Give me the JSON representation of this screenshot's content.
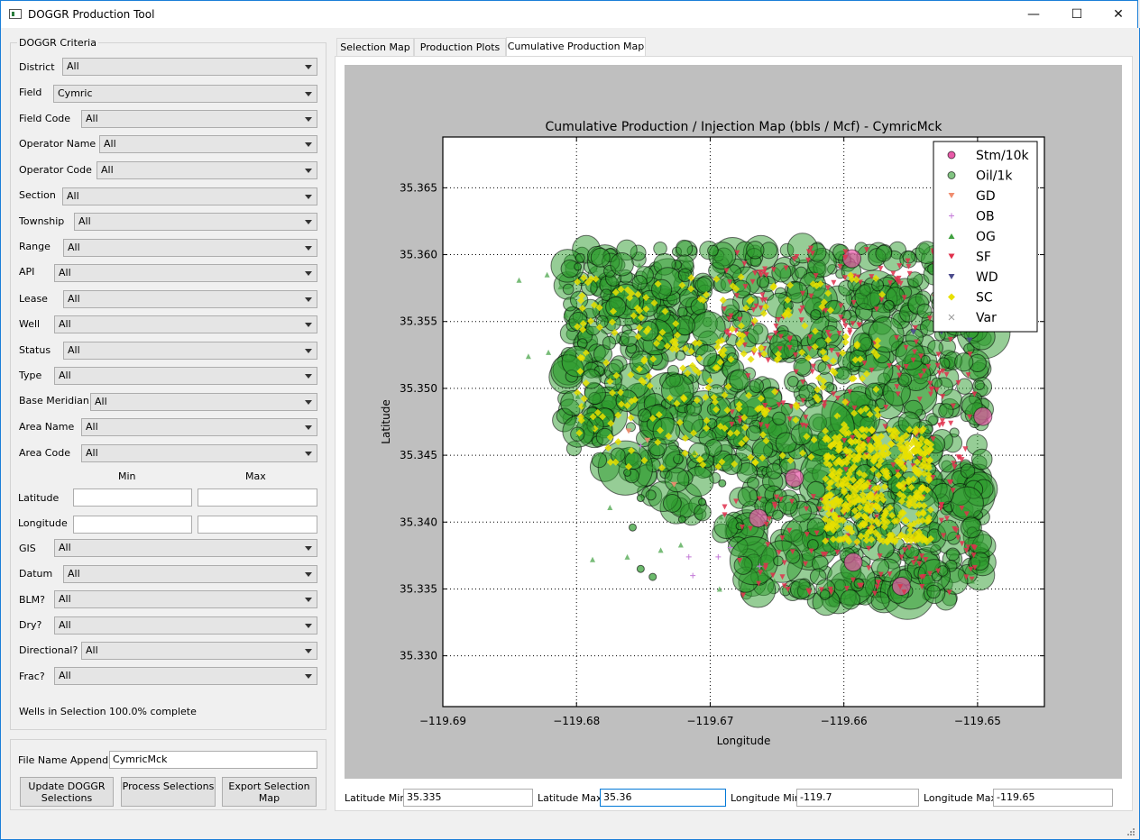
{
  "window": {
    "title": "DOGGR Production Tool",
    "minimize": "—",
    "maximize": "☐",
    "close": "✕"
  },
  "criteria": {
    "group_title": "DOGGR Criteria",
    "fields": [
      {
        "label": "District",
        "value": "All"
      },
      {
        "label": "Field",
        "value": "Cymric"
      },
      {
        "label": "Field Code",
        "value": "All"
      },
      {
        "label": "Operator Name",
        "value": "All"
      },
      {
        "label": "Operator Code",
        "value": "All"
      },
      {
        "label": "Section",
        "value": "All"
      },
      {
        "label": "Township",
        "value": "All"
      },
      {
        "label": "Range",
        "value": "All"
      },
      {
        "label": "API",
        "value": "All"
      },
      {
        "label": "Lease",
        "value": "All"
      },
      {
        "label": "Well",
        "value": "All"
      },
      {
        "label": "Status",
        "value": "All"
      },
      {
        "label": "Type",
        "value": "All"
      },
      {
        "label": "Base Meridian",
        "value": "All"
      },
      {
        "label": "Area  Name",
        "value": "All"
      },
      {
        "label": "Area  Code",
        "value": "All"
      }
    ],
    "min_label": "Min",
    "max_label": "Max",
    "latitude_label": "Latitude",
    "longitude_label": "Longitude",
    "latitude_min": "",
    "latitude_max": "",
    "longitude_min": "",
    "longitude_max": "",
    "fields2": [
      {
        "label": "GIS",
        "value": "All"
      },
      {
        "label": "Datum",
        "value": "All"
      },
      {
        "label": "BLM?",
        "value": "All"
      },
      {
        "label": "Dry?",
        "value": "All"
      },
      {
        "label": "Directional?",
        "value": "All"
      },
      {
        "label": "Frac?",
        "value": "All"
      }
    ],
    "wells_status": "Wells in Selection  100.0% complete"
  },
  "file": {
    "appendix_label": "File Name Appendix",
    "appendix_value": "CymricMck",
    "update_button": "Update DOGGR Selections",
    "process_button": "Process Selections",
    "export_button": "Export Selection Map"
  },
  "tabs": [
    "Selection Map",
    "Production Plots",
    "Cumulative Production Map"
  ],
  "bounds": {
    "lat_min_label": "Latitude Min",
    "lat_min": "35.335",
    "lat_max_label": "Latitude Max",
    "lat_max": "35.36",
    "lon_min_label": "Longitude Min",
    "lon_min": "-119.7",
    "lon_max_label": "Longitude Max",
    "lon_max": "-119.65"
  },
  "chart_data": {
    "type": "scatter",
    "title": "Cumulative Production / Injection Map (bbls / Mcf) - CymricMck",
    "xlabel": "Longitude",
    "ylabel": "Latitude",
    "xlim": [
      -119.69,
      -119.645
    ],
    "ylim": [
      35.3262,
      35.3688
    ],
    "x_ticks": [
      -119.69,
      -119.68,
      -119.67,
      -119.66,
      -119.65
    ],
    "x_tick_labels": [
      "−119.69",
      "−119.68",
      "−119.67",
      "−119.66",
      "−119.65"
    ],
    "y_ticks": [
      35.33,
      35.335,
      35.34,
      35.345,
      35.35,
      35.355,
      35.36,
      35.365
    ],
    "y_tick_labels": [
      "35.330",
      "35.335",
      "35.340",
      "35.345",
      "35.350",
      "35.355",
      "35.360",
      "35.365"
    ],
    "grid": true,
    "legend_position": "top-right",
    "colors": {
      "stm": "#e85aa8",
      "oil": "#2e9c2e",
      "gd": "#f08c6e",
      "ob": "#c47ad8",
      "og": "#3fa03f",
      "sf": "#e0304c",
      "wd": "#4a4a8c",
      "sc": "#e8e000",
      "var": "#9a9a9a"
    },
    "series": [
      {
        "name": "Stm/10k",
        "marker": "circle",
        "points": [
          [
            -119.6594,
            35.3597
          ],
          [
            -119.6496,
            35.3479
          ],
          [
            -119.6557,
            35.3352
          ],
          [
            -119.6593,
            35.337
          ],
          [
            -119.6637,
            35.3433
          ],
          [
            -119.6664,
            35.3403
          ]
        ]
      },
      {
        "name": "Oil/1k",
        "marker": "circle-big",
        "points": []
      },
      {
        "name": "GD",
        "marker": "triangle-down",
        "points": [
          [
            -119.6761,
            35.3468
          ],
          [
            -119.6747,
            35.3461
          ],
          [
            -119.6727,
            35.3428
          ]
        ]
      },
      {
        "name": "OB",
        "marker": "plus",
        "points": [
          [
            -119.6752,
            35.3457
          ],
          [
            -119.6713,
            35.336
          ],
          [
            -119.6716,
            35.3374
          ],
          [
            -119.6694,
            35.3374
          ],
          [
            -119.6685,
            35.3381
          ],
          [
            -119.6663,
            35.3367
          ]
        ]
      },
      {
        "name": "OG",
        "marker": "triangle",
        "points": []
      },
      {
        "name": "SF",
        "marker": "triangle-down",
        "points": []
      },
      {
        "name": "WD",
        "marker": "triangle-down",
        "points": [
          [
            -119.6548,
            35.3542
          ],
          [
            -119.6527,
            35.3542
          ],
          [
            -119.6506,
            35.3536
          ]
        ]
      },
      {
        "name": "SC",
        "marker": "diamond",
        "points": []
      },
      {
        "name": "Var",
        "marker": "x",
        "points": []
      }
    ]
  }
}
